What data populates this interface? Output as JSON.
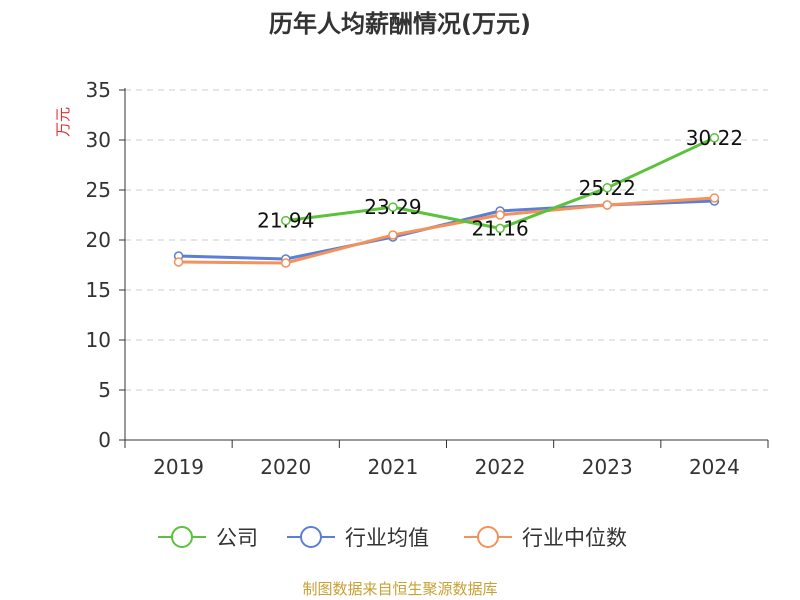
{
  "chart_data": {
    "type": "line",
    "title": "历年人均薪酬情况(万元)",
    "ylabel": "万元",
    "xlabel": "",
    "ylim": [
      0,
      35
    ],
    "yticks": [
      0,
      5,
      10,
      15,
      20,
      25,
      30,
      35
    ],
    "categories": [
      "2019",
      "2020",
      "2021",
      "2022",
      "2023",
      "2024"
    ],
    "series": [
      {
        "name": "公司",
        "color": "#5cc13b",
        "values": [
          null,
          21.94,
          23.29,
          21.16,
          25.22,
          30.22
        ],
        "labels": [
          null,
          "21.94",
          "23.29",
          "21.16",
          "25.22",
          "30.22"
        ]
      },
      {
        "name": "行业均值",
        "color": "#5b7fd6",
        "values": [
          18.4,
          18.1,
          20.3,
          22.9,
          23.5,
          23.9
        ]
      },
      {
        "name": "行业中位数",
        "color": "#f4925c",
        "values": [
          17.8,
          17.7,
          20.5,
          22.5,
          23.5,
          24.2
        ]
      }
    ],
    "legend_position": "bottom",
    "grid": true
  },
  "footer": {
    "source": "制图数据来自恒生聚源数据库"
  }
}
